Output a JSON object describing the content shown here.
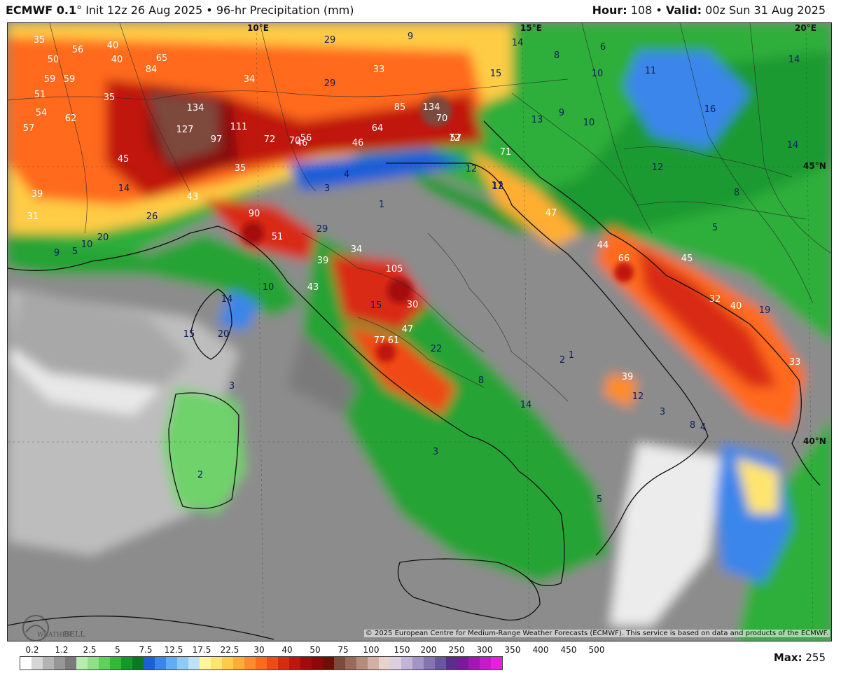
{
  "header": {
    "model": "ECMWF 0.1",
    "degree": "°",
    "init": "Init 12z 26 Aug 2025",
    "bullet": "•",
    "product": "96-hr Precipitation (mm)",
    "hour_label": "Hour:",
    "hour_value": "108",
    "valid_label": "Valid:",
    "valid_value": "00z Sun 31 Aug 2025"
  },
  "gridlabels": {
    "lon_10e": "10°E",
    "lon_15e": "15°E",
    "lon_20e": "20°E",
    "lat_45n": "45°N",
    "lat_40n": "40°N"
  },
  "map_values": [
    {
      "t": "35"
    },
    {
      "t": "50"
    },
    {
      "t": "56"
    },
    {
      "t": "59"
    },
    {
      "t": "40"
    },
    {
      "t": "40"
    },
    {
      "t": "65"
    },
    {
      "t": "84"
    },
    {
      "t": "59"
    },
    {
      "t": "51"
    },
    {
      "t": "54"
    },
    {
      "t": "62"
    },
    {
      "t": "57"
    },
    {
      "t": "35"
    },
    {
      "t": "134"
    },
    {
      "t": "127"
    },
    {
      "t": "111"
    },
    {
      "t": "97"
    },
    {
      "t": "72"
    },
    {
      "t": "70"
    },
    {
      "t": "56"
    },
    {
      "t": "46"
    },
    {
      "t": "45"
    },
    {
      "t": "35"
    },
    {
      "t": "34"
    },
    {
      "t": "29"
    },
    {
      "t": "29"
    },
    {
      "t": "9"
    },
    {
      "t": "33"
    },
    {
      "t": "85"
    },
    {
      "t": "134"
    },
    {
      "t": "70"
    },
    {
      "t": "64"
    },
    {
      "t": "72"
    },
    {
      "t": "57"
    },
    {
      "t": "46"
    },
    {
      "t": "14"
    },
    {
      "t": "8"
    },
    {
      "t": "6"
    },
    {
      "t": "10"
    },
    {
      "t": "15"
    },
    {
      "t": "11"
    },
    {
      "t": "14"
    },
    {
      "t": "16"
    },
    {
      "t": "13"
    },
    {
      "t": "9"
    },
    {
      "t": "10"
    },
    {
      "t": "12"
    },
    {
      "t": "14"
    },
    {
      "t": "8"
    },
    {
      "t": "5"
    },
    {
      "t": "71"
    },
    {
      "t": "12"
    },
    {
      "t": "17"
    },
    {
      "t": "47"
    },
    {
      "t": "12"
    },
    {
      "t": "3"
    },
    {
      "t": "4"
    },
    {
      "t": "1"
    },
    {
      "t": "39"
    },
    {
      "t": "31"
    },
    {
      "t": "14"
    },
    {
      "t": "43"
    },
    {
      "t": "26"
    },
    {
      "t": "20"
    },
    {
      "t": "10"
    },
    {
      "t": "9"
    },
    {
      "t": "5"
    },
    {
      "t": "90"
    },
    {
      "t": "51"
    },
    {
      "t": "29"
    },
    {
      "t": "34"
    },
    {
      "t": "39"
    },
    {
      "t": "105"
    },
    {
      "t": "43"
    },
    {
      "t": "10"
    },
    {
      "t": "14"
    },
    {
      "t": "15"
    },
    {
      "t": "30"
    },
    {
      "t": "47"
    },
    {
      "t": "77"
    },
    {
      "t": "61"
    },
    {
      "t": "22"
    },
    {
      "t": "15"
    },
    {
      "t": "20"
    },
    {
      "t": "44"
    },
    {
      "t": "66"
    },
    {
      "t": "45"
    },
    {
      "t": "32"
    },
    {
      "t": "40"
    },
    {
      "t": "19"
    },
    {
      "t": "33"
    },
    {
      "t": "2"
    },
    {
      "t": "1"
    },
    {
      "t": "39"
    },
    {
      "t": "12"
    },
    {
      "t": "8"
    },
    {
      "t": "3"
    },
    {
      "t": "4"
    },
    {
      "t": "8"
    },
    {
      "t": "14"
    },
    {
      "t": "3"
    },
    {
      "t": "5"
    },
    {
      "t": "2"
    },
    {
      "t": "3"
    }
  ],
  "legend": {
    "ticks": [
      "0.2",
      "1.2",
      "2.5",
      "5",
      "7.5",
      "12.5",
      "17.5",
      "22.5",
      "30",
      "40",
      "50",
      "75",
      "100",
      "150",
      "200",
      "250",
      "300",
      "350",
      "400",
      "450",
      "500"
    ],
    "colors": [
      "#ffffff",
      "#d6d6d6",
      "#b4b4b4",
      "#969696",
      "#7a7a7a",
      "#b7ecb0",
      "#8fe089",
      "#5fd15c",
      "#34b838",
      "#13992a",
      "#0a7a22",
      "#1c5fd8",
      "#3a86ea",
      "#62acf2",
      "#8fcaf6",
      "#bde2f7",
      "#fff59c",
      "#ffe56e",
      "#ffcc45",
      "#ffae33",
      "#ff8c28",
      "#ff6a1f",
      "#f04a18",
      "#d92a12",
      "#c0150e",
      "#a4090c",
      "#8a0a0a",
      "#6e1008",
      "#7d4a3c",
      "#9b6a5c",
      "#b88a7c",
      "#d4b0a4",
      "#ead2cc",
      "#dccfe0",
      "#c2b4d4",
      "#a294c4",
      "#8474b2",
      "#68569e",
      "#5a2e8a",
      "#7a1a9a",
      "#a216b4",
      "#c818c8",
      "#e81ee0"
    ],
    "max_label": "Max:",
    "max_value": "255"
  },
  "credit": "© 2025 European Centre for Medium-Range Weather Forecasts (ECMWF). This service is based on data and products of the ECMWF.",
  "logo": {
    "top": "WEATHER",
    "bottom": "BELL"
  }
}
